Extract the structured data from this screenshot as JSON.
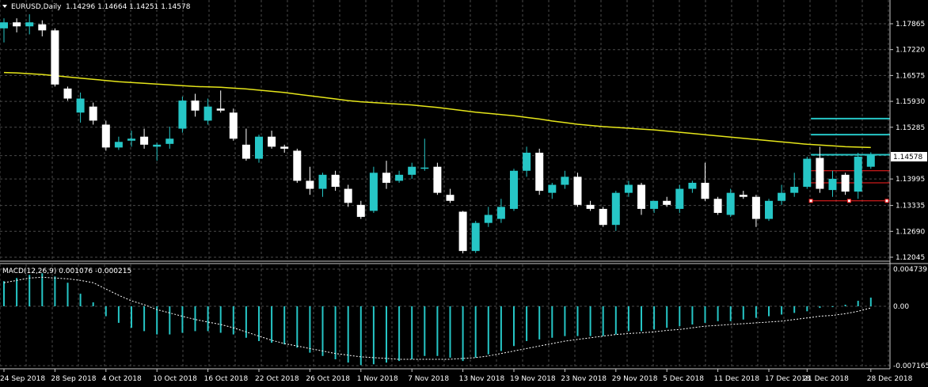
{
  "header": {
    "symbol_label": "EURUSD,Daily",
    "ohlc": "1.14296 1.14664 1.14251 1.14578"
  },
  "current_price": "1.14578",
  "indicator": {
    "label": "MACD(12,26,9) 0.001076 -0.000215"
  },
  "colors": {
    "background": "#000000",
    "grid": "#4a4a4a",
    "bull": "#26c6c6",
    "bear": "#ffffff",
    "ma": "#e6e61a",
    "macd_hist": "#26c6c6",
    "signal": "#ffffff",
    "resistance": "#26c6c6",
    "support": "#ff2020"
  },
  "chart_data": [
    {
      "type": "candlestick",
      "title": "EURUSD,Daily",
      "y_ticks": [
        "1.17865",
        "1.17220",
        "1.16575",
        "1.15930",
        "1.15285",
        "1.14578",
        "1.13995",
        "1.13335",
        "1.12690",
        "1.12045"
      ],
      "ylim": [
        1.12045,
        1.1822
      ],
      "x_tick_labels": [
        "24 Sep 2018",
        "28 Sep 2018",
        "4 Oct 2018",
        "10 Oct 2018",
        "16 Oct 2018",
        "22 Oct 2018",
        "26 Oct 2018",
        "1 Nov 2018",
        "7 Nov 2018",
        "13 Nov 2018",
        "19 Nov 2018",
        "23 Nov 2018",
        "29 Nov 2018",
        "5 Dec 2018",
        "11 Dec 2018",
        "17 Dec 2018",
        "21 Dec 2018",
        "28 Dec 2018"
      ],
      "x_tick_index": [
        0,
        4,
        8,
        12,
        16,
        20,
        24,
        28,
        32,
        36,
        40,
        44,
        48,
        52,
        56,
        60,
        63,
        68
      ],
      "candles": [
        [
          1.1775,
          1.18,
          1.174,
          1.179
        ],
        [
          1.179,
          1.18,
          1.1765,
          1.178
        ],
        [
          1.178,
          1.181,
          1.176,
          1.179
        ],
        [
          1.1785,
          1.1795,
          1.1755,
          1.177
        ],
        [
          1.177,
          1.1775,
          1.163,
          1.1635
        ],
        [
          1.1625,
          1.163,
          1.1595,
          1.16
        ],
        [
          1.1565,
          1.1615,
          1.154,
          1.16
        ],
        [
          1.158,
          1.159,
          1.1535,
          1.1545
        ],
        [
          1.1535,
          1.1545,
          1.147,
          1.1478
        ],
        [
          1.1478,
          1.1505,
          1.1472,
          1.1492
        ],
        [
          1.1495,
          1.152,
          1.148,
          1.15
        ],
        [
          1.1505,
          1.1525,
          1.1475,
          1.1485
        ],
        [
          1.148,
          1.149,
          1.1445,
          1.1485
        ],
        [
          1.1487,
          1.153,
          1.1475,
          1.15
        ],
        [
          1.1525,
          1.1605,
          1.1515,
          1.1595
        ],
        [
          1.1595,
          1.1612,
          1.1555,
          1.157
        ],
        [
          1.1545,
          1.16,
          1.1535,
          1.158
        ],
        [
          1.1575,
          1.162,
          1.1565,
          1.157
        ],
        [
          1.1565,
          1.1575,
          1.1495,
          1.15
        ],
        [
          1.1485,
          1.1525,
          1.1445,
          1.145
        ],
        [
          1.145,
          1.151,
          1.144,
          1.1505
        ],
        [
          1.1505,
          1.152,
          1.1475,
          1.148
        ],
        [
          1.148,
          1.1485,
          1.1465,
          1.1475
        ],
        [
          1.147,
          1.1475,
          1.139,
          1.1395
        ],
        [
          1.1395,
          1.143,
          1.136,
          1.1375
        ],
        [
          1.1375,
          1.1415,
          1.1355,
          1.141
        ],
        [
          1.141,
          1.142,
          1.137,
          1.138
        ],
        [
          1.1375,
          1.1385,
          1.133,
          1.134
        ],
        [
          1.1335,
          1.1345,
          1.13,
          1.1305
        ],
        [
          1.132,
          1.143,
          1.1315,
          1.1415
        ],
        [
          1.1415,
          1.1445,
          1.1375,
          1.139
        ],
        [
          1.1395,
          1.142,
          1.139,
          1.141
        ],
        [
          1.141,
          1.144,
          1.14,
          1.143
        ],
        [
          1.1425,
          1.15,
          1.142,
          1.1428
        ],
        [
          1.143,
          1.144,
          1.136,
          1.1365
        ],
        [
          1.136,
          1.1375,
          1.134,
          1.1345
        ],
        [
          1.1318,
          1.132,
          1.1214,
          1.122
        ],
        [
          1.122,
          1.1295,
          1.1215,
          1.129
        ],
        [
          1.129,
          1.133,
          1.128,
          1.131
        ],
        [
          1.13,
          1.135,
          1.129,
          1.133
        ],
        [
          1.1325,
          1.1425,
          1.132,
          1.142
        ],
        [
          1.142,
          1.148,
          1.1405,
          1.1465
        ],
        [
          1.1465,
          1.1475,
          1.136,
          1.137
        ],
        [
          1.1365,
          1.139,
          1.135,
          1.1385
        ],
        [
          1.1385,
          1.142,
          1.1375,
          1.1405
        ],
        [
          1.1405,
          1.1415,
          1.133,
          1.1335
        ],
        [
          1.1335,
          1.1345,
          1.132,
          1.1325
        ],
        [
          1.1325,
          1.133,
          1.128,
          1.1285
        ],
        [
          1.1285,
          1.137,
          1.127,
          1.1365
        ],
        [
          1.1365,
          1.1395,
          1.1355,
          1.1385
        ],
        [
          1.1385,
          1.139,
          1.131,
          1.1325
        ],
        [
          1.1325,
          1.1345,
          1.1315,
          1.1345
        ],
        [
          1.1345,
          1.1355,
          1.133,
          1.1335
        ],
        [
          1.1325,
          1.1385,
          1.1315,
          1.1375
        ],
        [
          1.1375,
          1.1395,
          1.1365,
          1.139
        ],
        [
          1.139,
          1.144,
          1.1345,
          1.135
        ],
        [
          1.135,
          1.1355,
          1.131,
          1.1315
        ],
        [
          1.131,
          1.1375,
          1.1305,
          1.1365
        ],
        [
          1.136,
          1.137,
          1.135,
          1.1355
        ],
        [
          1.1355,
          1.136,
          1.128,
          1.13
        ],
        [
          1.13,
          1.135,
          1.1295,
          1.1345
        ],
        [
          1.1345,
          1.1385,
          1.1335,
          1.1365
        ],
        [
          1.1365,
          1.1415,
          1.1355,
          1.138
        ],
        [
          1.138,
          1.1455,
          1.1375,
          1.145
        ],
        [
          1.1452,
          1.148,
          1.1365,
          1.1375
        ],
        [
          1.1372,
          1.142,
          1.1355,
          1.14
        ],
        [
          1.141,
          1.1415,
          1.136,
          1.1368
        ],
        [
          1.1368,
          1.1465,
          1.135,
          1.1455
        ],
        [
          1.143,
          1.1466,
          1.1425,
          1.1458
        ]
      ],
      "moving_average": [
        1.1665,
        1.1664,
        1.1662,
        1.166,
        1.1657,
        1.1654,
        1.1651,
        1.1648,
        1.1645,
        1.1642,
        1.164,
        1.1638,
        1.1636,
        1.1634,
        1.1632,
        1.163,
        1.1629,
        1.1628,
        1.1626,
        1.1624,
        1.1621,
        1.1618,
        1.1615,
        1.1611,
        1.1607,
        1.1603,
        1.1599,
        1.1595,
        1.1592,
        1.159,
        1.1588,
        1.1586,
        1.1584,
        1.1581,
        1.1578,
        1.1574,
        1.157,
        1.1566,
        1.1563,
        1.156,
        1.1557,
        1.1553,
        1.1549,
        1.1544,
        1.154,
        1.1536,
        1.1533,
        1.153,
        1.1528,
        1.1526,
        1.1524,
        1.1522,
        1.1519,
        1.1516,
        1.1513,
        1.151,
        1.1507,
        1.1504,
        1.1501,
        1.1498,
        1.1495,
        1.1492,
        1.1489,
        1.1486,
        1.1484,
        1.1482,
        1.148,
        1.1479,
        1.1478
      ],
      "resistance_levels": [
        1.155,
        1.151,
        1.146
      ],
      "support_levels": [
        1.142,
        1.139,
        1.1345
      ]
    },
    {
      "type": "bar",
      "title": "MACD(12,26,9) 0.001076 -0.000215",
      "y_ticks": [
        "0.004739",
        "0.00",
        "-0.007165"
      ],
      "ylim": [
        -0.007165,
        0.004739
      ],
      "histogram": [
        0.0032,
        0.0036,
        0.004,
        0.0042,
        0.0038,
        0.003,
        0.0016,
        0.0005,
        -0.0012,
        -0.002,
        -0.0026,
        -0.003,
        -0.0034,
        -0.0034,
        -0.0032,
        -0.003,
        -0.003,
        -0.0032,
        -0.0034,
        -0.0038,
        -0.0042,
        -0.0044,
        -0.0046,
        -0.005,
        -0.0056,
        -0.006,
        -0.0064,
        -0.0068,
        -0.0071,
        -0.007,
        -0.0068,
        -0.0066,
        -0.0064,
        -0.006,
        -0.006,
        -0.0062,
        -0.0066,
        -0.0062,
        -0.0058,
        -0.0054,
        -0.0048,
        -0.0042,
        -0.004,
        -0.0038,
        -0.0036,
        -0.0036,
        -0.0036,
        -0.0036,
        -0.0034,
        -0.003,
        -0.003,
        -0.0028,
        -0.0026,
        -0.0024,
        -0.0022,
        -0.002,
        -0.0018,
        -0.0018,
        -0.0016,
        -0.0014,
        -0.0012,
        -0.001,
        -0.0008,
        -0.0006,
        -0.0002,
        -0.0001,
        0.0002,
        0.0007,
        0.0011
      ],
      "signal": [
        0.003,
        0.0033,
        0.0036,
        0.0037,
        0.0036,
        0.0035,
        0.0033,
        0.003,
        0.0022,
        0.0014,
        0.0007,
        0.0002,
        -0.0004,
        -0.0008,
        -0.0012,
        -0.0016,
        -0.0019,
        -0.0022,
        -0.0026,
        -0.0031,
        -0.0036,
        -0.0041,
        -0.0045,
        -0.0048,
        -0.0051,
        -0.0054,
        -0.0057,
        -0.0059,
        -0.0061,
        -0.0062,
        -0.0063,
        -0.0064,
        -0.0064,
        -0.0064,
        -0.0064,
        -0.0064,
        -0.0063,
        -0.0062,
        -0.006,
        -0.0057,
        -0.0054,
        -0.0051,
        -0.0048,
        -0.0045,
        -0.0042,
        -0.004,
        -0.0038,
        -0.0036,
        -0.0034,
        -0.0033,
        -0.0032,
        -0.0031,
        -0.0029,
        -0.0028,
        -0.0026,
        -0.0024,
        -0.0023,
        -0.0022,
        -0.0021,
        -0.002,
        -0.0019,
        -0.0018,
        -0.0016,
        -0.0014,
        -0.0012,
        -0.0011,
        -0.0009,
        -0.0006,
        -0.0002
      ]
    }
  ]
}
